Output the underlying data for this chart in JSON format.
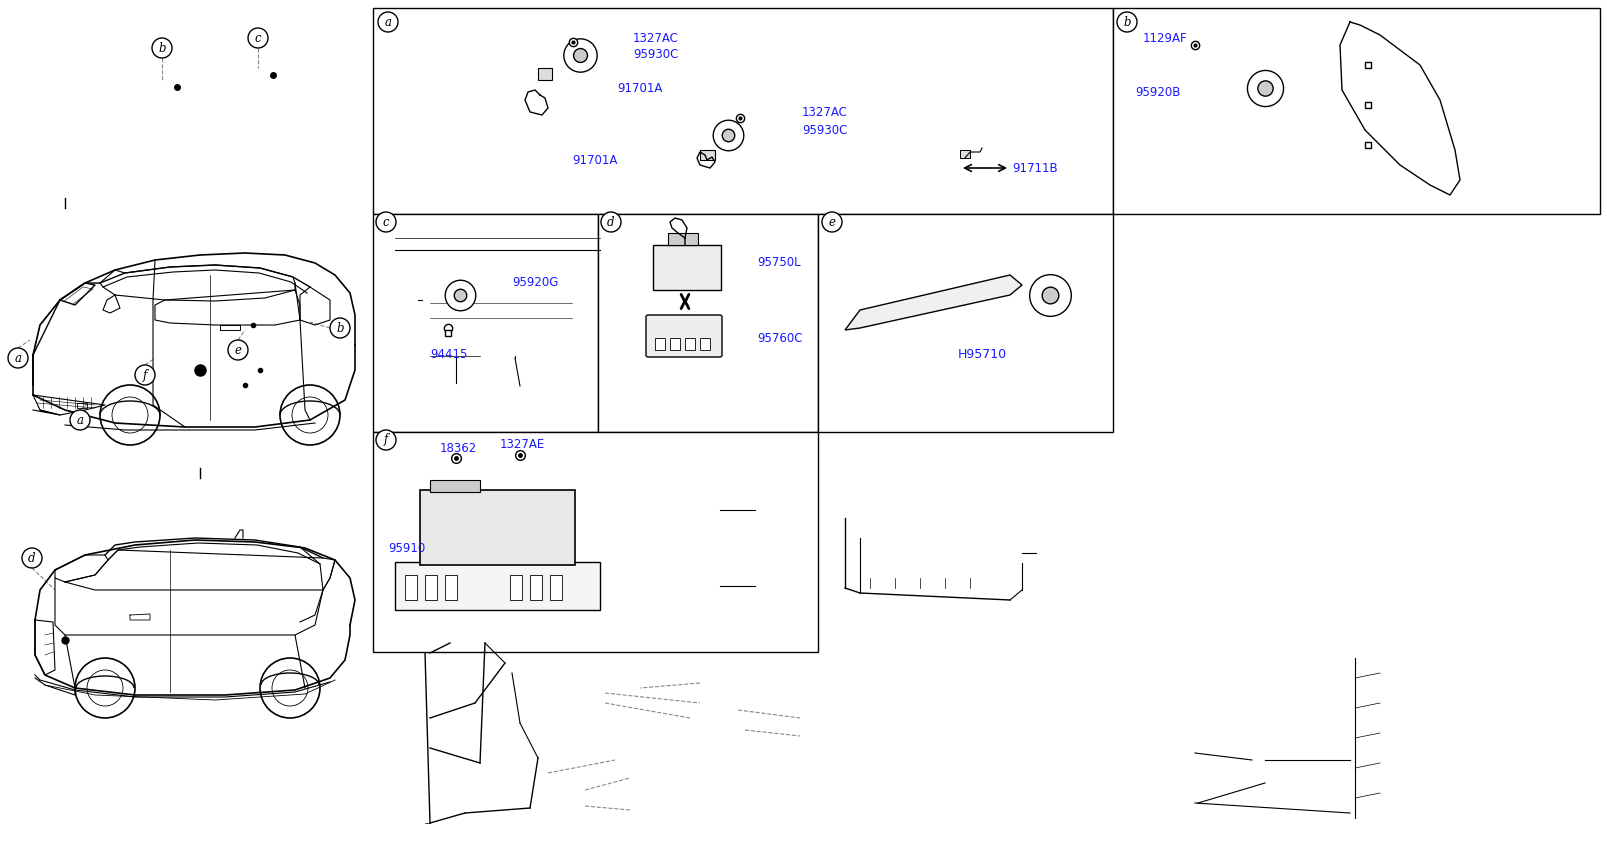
{
  "bg_color": "#ffffff",
  "blue": "#1a1aff",
  "black": "#000000",
  "panels": {
    "a": [
      373,
      8,
      1113,
      214
    ],
    "b": [
      1113,
      8,
      1600,
      214
    ],
    "c": [
      373,
      214,
      598,
      432
    ],
    "d": [
      598,
      214,
      818,
      432
    ],
    "e": [
      818,
      214,
      1113,
      432
    ],
    "f": [
      373,
      432,
      818,
      652
    ]
  }
}
